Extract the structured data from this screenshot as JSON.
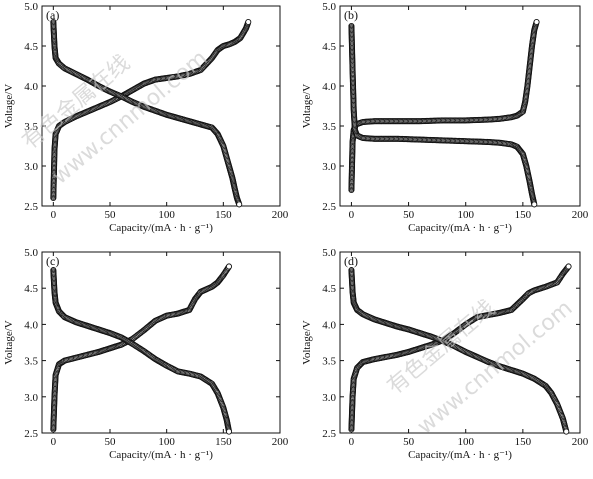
{
  "figure": {
    "watermark_cn": "有色金属在线",
    "watermark_url": "www.cnnmol.com"
  },
  "chart_data": [
    {
      "type": "scatter",
      "panel_label": "(a)",
      "xlabel": "Capacity/(mA · h · g⁻¹)",
      "ylabel": "Voltage/V",
      "xlim": [
        -10,
        200
      ],
      "ylim": [
        2.5,
        5.0
      ],
      "xticks": [
        0,
        50,
        100,
        150,
        200
      ],
      "yticks": [
        2.5,
        3.0,
        3.5,
        4.0,
        4.5,
        5.0
      ],
      "series": [
        {
          "role": "charge",
          "x": [
            0,
            1,
            2,
            5,
            10,
            20,
            30,
            40,
            50,
            60,
            70,
            80,
            90,
            100,
            110,
            120,
            130,
            140,
            145,
            150,
            155,
            160,
            165,
            170,
            172
          ],
          "y": [
            2.6,
            3.2,
            3.4,
            3.5,
            3.55,
            3.62,
            3.68,
            3.74,
            3.8,
            3.87,
            3.95,
            4.03,
            4.08,
            4.1,
            4.12,
            4.15,
            4.2,
            4.35,
            4.45,
            4.5,
            4.52,
            4.55,
            4.6,
            4.72,
            4.8
          ]
        },
        {
          "role": "discharge",
          "x": [
            0,
            1,
            2,
            5,
            10,
            20,
            30,
            40,
            50,
            60,
            70,
            80,
            90,
            100,
            110,
            120,
            130,
            140,
            145,
            150,
            155,
            158,
            160,
            162,
            164
          ],
          "y": [
            4.8,
            4.5,
            4.35,
            4.28,
            4.22,
            4.15,
            4.08,
            4.0,
            3.93,
            3.87,
            3.8,
            3.74,
            3.69,
            3.64,
            3.6,
            3.56,
            3.52,
            3.48,
            3.4,
            3.25,
            3.0,
            2.85,
            2.72,
            2.6,
            2.52
          ]
        }
      ]
    },
    {
      "type": "scatter",
      "panel_label": "(b)",
      "xlabel": "Capacity/(mA · h · g⁻¹)",
      "ylabel": "Voltage/V",
      "xlim": [
        -10,
        200
      ],
      "ylim": [
        2.5,
        5.0
      ],
      "xticks": [
        0,
        50,
        100,
        150,
        200
      ],
      "yticks": [
        2.5,
        3.0,
        3.5,
        4.0,
        4.5,
        5.0
      ],
      "series": [
        {
          "role": "charge",
          "x": [
            0,
            1,
            2,
            4,
            10,
            20,
            40,
            60,
            80,
            100,
            120,
            130,
            140,
            145,
            150,
            152,
            154,
            156,
            158,
            160,
            162
          ],
          "y": [
            2.7,
            3.3,
            3.45,
            3.52,
            3.55,
            3.56,
            3.56,
            3.56,
            3.57,
            3.57,
            3.58,
            3.59,
            3.61,
            3.63,
            3.68,
            3.8,
            4.0,
            4.25,
            4.5,
            4.7,
            4.8
          ]
        },
        {
          "role": "discharge",
          "x": [
            0,
            1,
            2,
            3,
            5,
            10,
            20,
            40,
            60,
            80,
            100,
            120,
            130,
            140,
            145,
            150,
            153,
            156,
            158,
            160
          ],
          "y": [
            4.75,
            4.2,
            3.7,
            3.45,
            3.38,
            3.35,
            3.34,
            3.34,
            3.33,
            3.32,
            3.31,
            3.3,
            3.29,
            3.27,
            3.24,
            3.15,
            3.0,
            2.8,
            2.65,
            2.52
          ]
        }
      ]
    },
    {
      "type": "scatter",
      "panel_label": "(c)",
      "xlabel": "Capacity/(mA · h · g⁻¹)",
      "ylabel": "Voltage/V",
      "xlim": [
        -10,
        200
      ],
      "ylim": [
        2.5,
        5.0
      ],
      "xticks": [
        0,
        50,
        100,
        150,
        200
      ],
      "yticks": [
        2.5,
        3.0,
        3.5,
        4.0,
        4.5,
        5.0
      ],
      "series": [
        {
          "role": "charge",
          "x": [
            0,
            1,
            2,
            5,
            10,
            20,
            30,
            40,
            50,
            60,
            70,
            80,
            90,
            100,
            110,
            120,
            125,
            130,
            140,
            145,
            150,
            155
          ],
          "y": [
            2.55,
            3.0,
            3.3,
            3.45,
            3.5,
            3.54,
            3.58,
            3.62,
            3.67,
            3.72,
            3.8,
            3.92,
            4.05,
            4.12,
            4.15,
            4.2,
            4.35,
            4.45,
            4.52,
            4.58,
            4.68,
            4.8
          ]
        },
        {
          "role": "discharge",
          "x": [
            0,
            1,
            2,
            5,
            10,
            20,
            30,
            40,
            50,
            60,
            70,
            80,
            90,
            100,
            110,
            120,
            130,
            140,
            145,
            150,
            153,
            155
          ],
          "y": [
            4.75,
            4.45,
            4.3,
            4.18,
            4.1,
            4.03,
            3.98,
            3.93,
            3.88,
            3.82,
            3.73,
            3.63,
            3.52,
            3.43,
            3.35,
            3.32,
            3.28,
            3.18,
            3.05,
            2.85,
            2.68,
            2.52
          ]
        }
      ]
    },
    {
      "type": "scatter",
      "panel_label": "(d)",
      "xlabel": "Capacity/(mA · h · g⁻¹)",
      "ylabel": "Voltage/V",
      "xlim": [
        -10,
        200
      ],
      "ylim": [
        2.5,
        5.0
      ],
      "xticks": [
        0,
        50,
        100,
        150,
        200
      ],
      "yticks": [
        2.5,
        3.0,
        3.5,
        4.0,
        4.5,
        5.0
      ],
      "series": [
        {
          "role": "charge",
          "x": [
            0,
            1,
            2,
            5,
            10,
            20,
            30,
            40,
            50,
            60,
            70,
            80,
            90,
            100,
            110,
            120,
            130,
            140,
            150,
            155,
            160,
            170,
            180,
            185,
            190
          ],
          "y": [
            2.55,
            3.0,
            3.25,
            3.4,
            3.48,
            3.52,
            3.55,
            3.58,
            3.62,
            3.67,
            3.72,
            3.78,
            3.88,
            4.0,
            4.1,
            4.13,
            4.16,
            4.2,
            4.35,
            4.43,
            4.47,
            4.52,
            4.58,
            4.7,
            4.8
          ]
        },
        {
          "role": "discharge",
          "x": [
            0,
            1,
            2,
            5,
            10,
            20,
            30,
            40,
            50,
            60,
            70,
            80,
            90,
            100,
            110,
            120,
            130,
            140,
            150,
            160,
            170,
            175,
            180,
            185,
            188
          ],
          "y": [
            4.75,
            4.45,
            4.3,
            4.2,
            4.14,
            4.07,
            4.02,
            3.97,
            3.93,
            3.88,
            3.83,
            3.77,
            3.7,
            3.62,
            3.55,
            3.48,
            3.42,
            3.37,
            3.32,
            3.25,
            3.15,
            3.05,
            2.9,
            2.7,
            2.52
          ]
        }
      ]
    }
  ]
}
